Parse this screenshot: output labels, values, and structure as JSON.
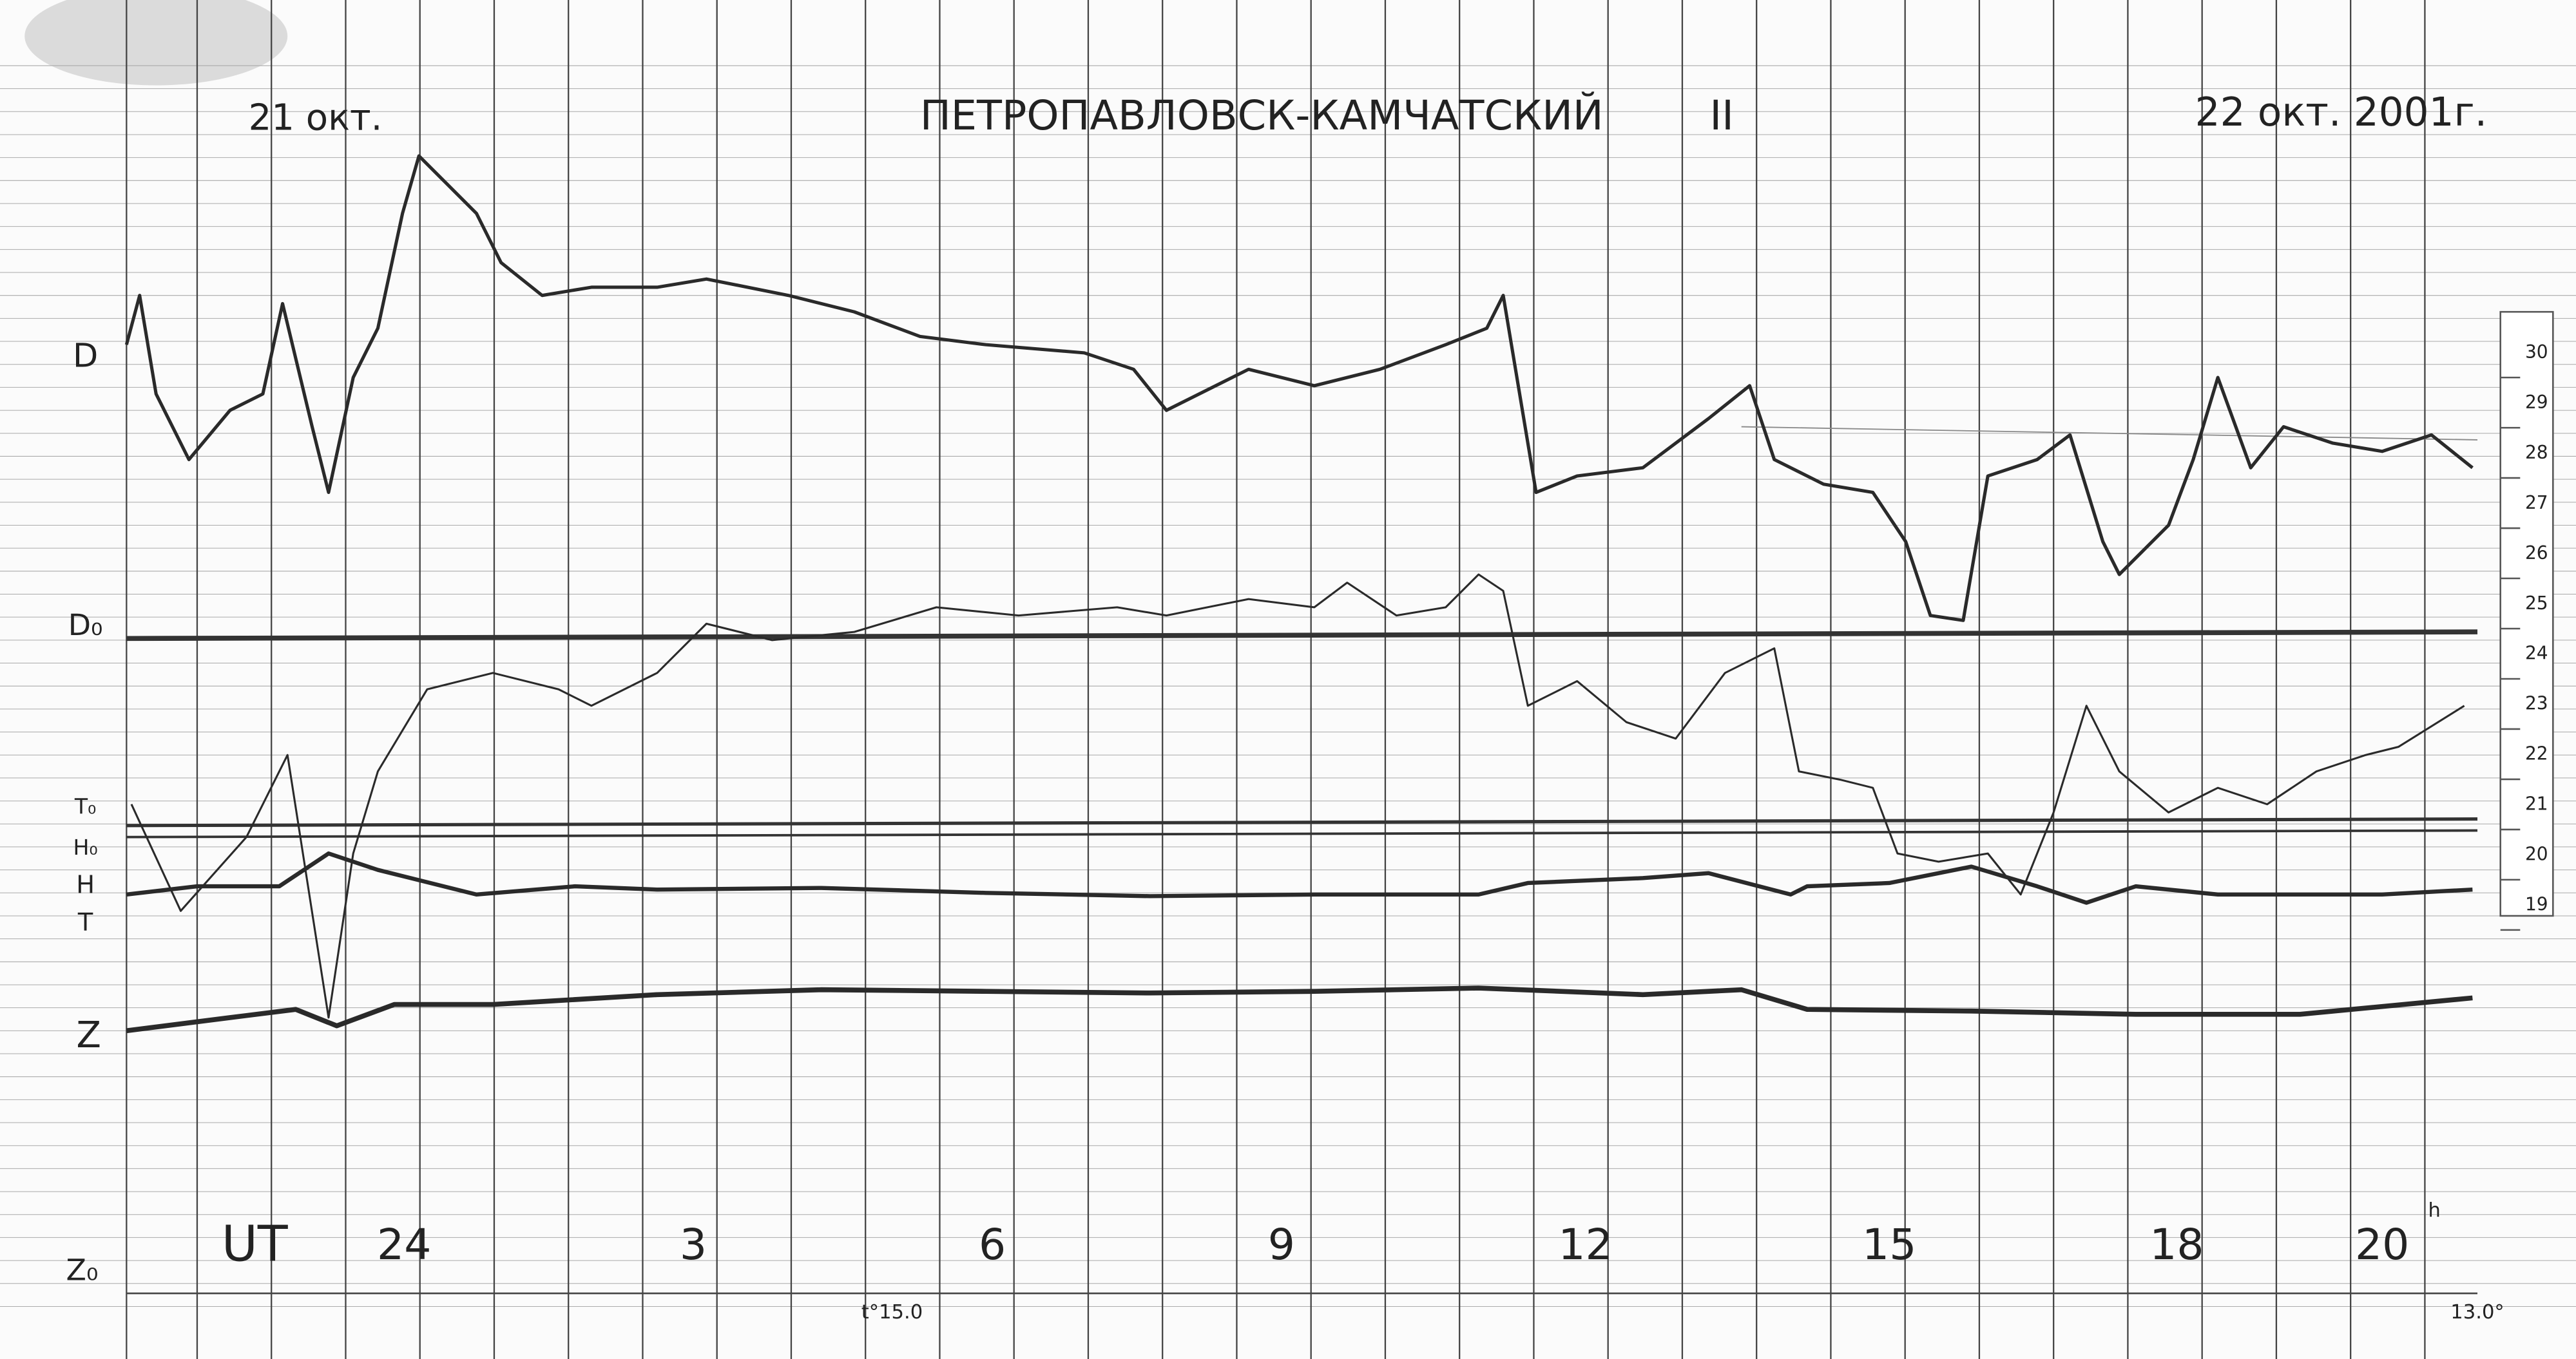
{
  "header": {
    "date_start": "21 окт.",
    "station": "ПЕТРОПАВЛОВСК-КАМЧАТСКИЙ",
    "station_number": "II",
    "date_end": "22 окт. 2001г."
  },
  "trace_labels": [
    "D",
    "D₀",
    "T₀",
    "H₀",
    "H",
    "T",
    "Z",
    "Z₀"
  ],
  "time_axis": {
    "label": "UT",
    "hours": [
      "24",
      "3",
      "6",
      "9",
      "12",
      "15",
      "18",
      "20"
    ],
    "hour_unit": "h"
  },
  "temperatures": [
    "t°15.0",
    "13.0°"
  ],
  "scale": [
    "30",
    "29",
    "28",
    "27",
    "26",
    "25",
    "24",
    "23",
    "22",
    "21",
    "20",
    "19"
  ]
}
